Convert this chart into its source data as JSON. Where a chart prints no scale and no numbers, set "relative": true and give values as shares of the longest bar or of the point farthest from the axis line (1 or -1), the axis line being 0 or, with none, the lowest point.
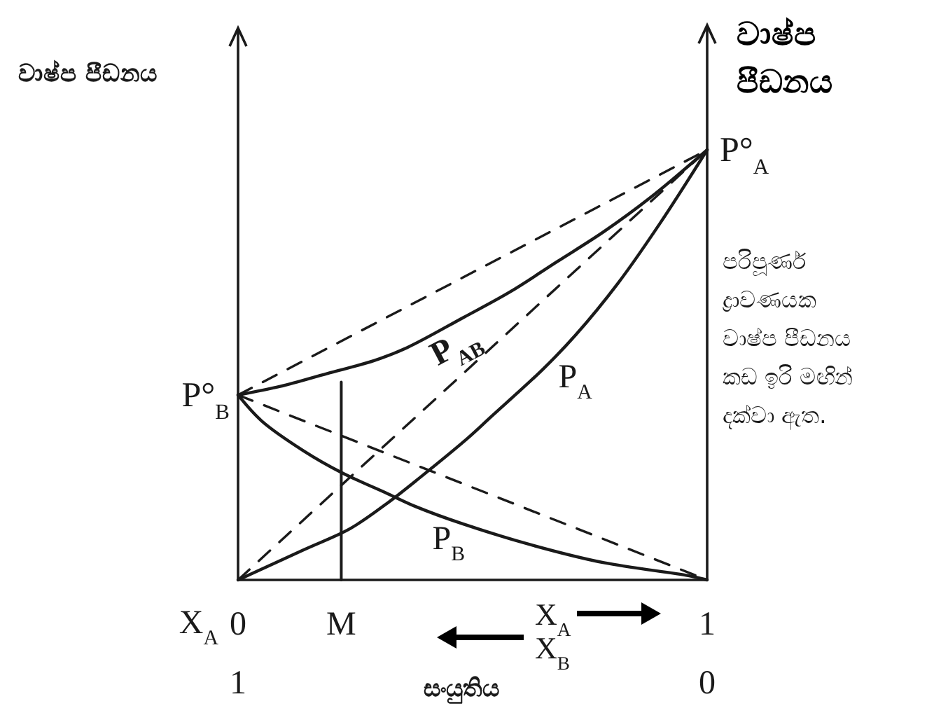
{
  "chart_data": {
    "type": "line",
    "relative": true,
    "line_style": "solid",
    "xlabel": "සංයුතිය",
    "ylabel": "වාෂ්ප පීඩනය",
    "y2label": "වාෂ්ප පීඩනය",
    "xlim": [
      0,
      1
    ],
    "xticks": [
      0,
      {
        "value": 0.22,
        "label": "M"
      },
      1
    ],
    "x2lim": [
      1,
      0
    ],
    "x2ticks": [
      1,
      0
    ],
    "series": [
      {
        "name": "P$_{A}$",
        "color": "#1a1a1a",
        "x": [
          0,
          0.14,
          0.24,
          0.32,
          0.39,
          0.49,
          0.54,
          0.65,
          0.72,
          0.81,
          0.9,
          1
        ],
        "values": [
          0,
          0.07,
          0.12,
          0.18,
          0.24,
          0.33,
          0.38,
          0.49,
          0.57,
          0.69,
          0.83,
          1
        ]
      },
      {
        "name": "P$_{B}$",
        "color": "#1a1a1a",
        "x": [
          0,
          0.05,
          0.14,
          0.22,
          0.32,
          0.38,
          0.48,
          0.63,
          0.78,
          0.96,
          1
        ],
        "values": [
          0.43,
          0.37,
          0.3,
          0.25,
          0.2,
          0.17,
          0.13,
          0.08,
          0.04,
          0.01,
          0
        ]
      },
      {
        "name": "P$_{AB}$",
        "color": "#1a1a1a",
        "x": [
          0,
          0.09,
          0.19,
          0.29,
          0.36,
          0.48,
          0.58,
          0.68,
          0.78,
          0.88,
          1
        ],
        "values": [
          0.43,
          0.45,
          0.48,
          0.51,
          0.54,
          0.61,
          0.67,
          0.74,
          0.81,
          0.89,
          1
        ]
      },
      {
        "color": "#1a1a1a",
        "line_style": "dashed",
        "x": [
          0,
          1
        ],
        "values": [
          0,
          1
        ]
      },
      {
        "color": "#1a1a1a",
        "line_style": "dashed",
        "x": [
          0,
          1
        ],
        "values": [
          0.43,
          0
        ]
      },
      {
        "color": "#1a1a1a",
        "line_style": "dashed",
        "x": [
          0,
          1
        ],
        "values": [
          0.43,
          1
        ]
      },
      {
        "color": "#1a1a1a",
        "x": [
          0.22,
          0.22
        ],
        "values": [
          0,
          0.46
        ]
      }
    ],
    "annotations": [
      {
        "text": "P°$_{A}$",
        "x": 1,
        "y": 1
      },
      {
        "text": "P°$_{B}$",
        "x": 0,
        "y": 0.43
      },
      "X$_{A}$",
      "X$_{A}$",
      "X$_{B}$",
      "පරිපූර්ණ ද්‍රාවණයක වාෂ්ප පීඩනය කඩ ඉරි මඟින් දක්වා ඇත."
    ]
  }
}
